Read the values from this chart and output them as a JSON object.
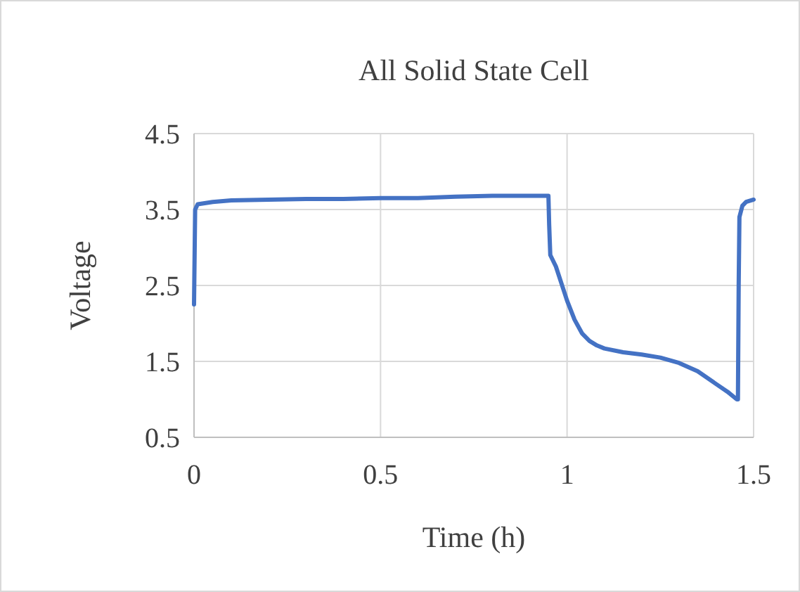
{
  "chart_data": {
    "type": "line",
    "title": "All Solid State Cell",
    "xlabel": "Time (h)",
    "ylabel": "Voltage",
    "x": [
      0,
      0.003,
      0.01,
      0.05,
      0.1,
      0.2,
      0.3,
      0.4,
      0.5,
      0.6,
      0.7,
      0.8,
      0.95,
      0.952,
      0.955,
      0.97,
      0.99,
      1.0,
      1.02,
      1.04,
      1.06,
      1.08,
      1.1,
      1.15,
      1.2,
      1.25,
      1.3,
      1.35,
      1.4,
      1.43,
      1.455,
      1.458,
      1.46,
      1.462,
      1.47,
      1.48,
      1.5
    ],
    "series": [
      {
        "color": "#4472c4",
        "values": [
          2.25,
          3.5,
          3.57,
          3.6,
          3.62,
          3.63,
          3.64,
          3.64,
          3.65,
          3.65,
          3.67,
          3.68,
          3.68,
          3.3,
          2.9,
          2.75,
          2.45,
          2.3,
          2.05,
          1.87,
          1.77,
          1.71,
          1.67,
          1.62,
          1.59,
          1.55,
          1.48,
          1.37,
          1.2,
          1.1,
          1.0,
          1.0,
          2.5,
          3.4,
          3.55,
          3.6,
          3.63
        ]
      }
    ],
    "xlim": [
      0,
      1.5
    ],
    "xticks": [
      0,
      0.5,
      1,
      1.5
    ],
    "ylim": [
      0.5,
      4.5
    ],
    "yticks": [
      0.5,
      1.5,
      2.5,
      3.5,
      4.5
    ],
    "grid": true,
    "marker": "none",
    "line_style": "solid"
  }
}
